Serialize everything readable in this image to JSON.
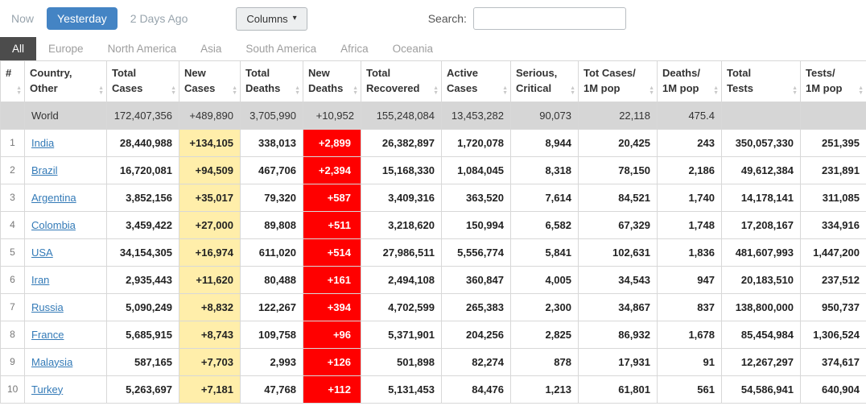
{
  "topbar": {
    "now": "Now",
    "yesterday": "Yesterday",
    "two_days_ago": "2 Days Ago",
    "columns_button": "Columns",
    "caret_icon": "▾",
    "search_label": "Search:",
    "search_value": ""
  },
  "colors": {
    "accent_blue": "#4484c4",
    "active_tab_bg": "#4c4c4c",
    "new_cases_bg": "#FFEEAA",
    "new_deaths_bg": "#FF0000",
    "world_row_bg": "#d6d6d6",
    "link_blue": "#337ab7"
  },
  "tabs": [
    {
      "label": "All",
      "active": true
    },
    {
      "label": "Europe",
      "active": false
    },
    {
      "label": "North America",
      "active": false
    },
    {
      "label": "Asia",
      "active": false
    },
    {
      "label": "South America",
      "active": false
    },
    {
      "label": "Africa",
      "active": false
    },
    {
      "label": "Oceania",
      "active": false
    }
  ],
  "table": {
    "headers": [
      {
        "key": "rank",
        "lines": [
          "#"
        ],
        "sortable": true
      },
      {
        "key": "country",
        "lines": [
          "Country,",
          "Other"
        ],
        "sortable": true
      },
      {
        "key": "total_cases",
        "lines": [
          "Total",
          "Cases"
        ],
        "sortable": true
      },
      {
        "key": "new_cases",
        "lines": [
          "New",
          "Cases"
        ],
        "sortable": true
      },
      {
        "key": "total_deaths",
        "lines": [
          "Total",
          "Deaths"
        ],
        "sortable": true
      },
      {
        "key": "new_deaths",
        "lines": [
          "New",
          "Deaths"
        ],
        "sortable": true
      },
      {
        "key": "total_recovered",
        "lines": [
          "Total",
          "Recovered"
        ],
        "sortable": true
      },
      {
        "key": "active_cases",
        "lines": [
          "Active",
          "Cases"
        ],
        "sortable": true
      },
      {
        "key": "serious_critical",
        "lines": [
          "Serious,",
          "Critical"
        ],
        "sortable": true
      },
      {
        "key": "tot_cases_1m",
        "lines": [
          "Tot Cases/",
          "1M pop"
        ],
        "sortable": true
      },
      {
        "key": "deaths_1m",
        "lines": [
          "Deaths/",
          "1M pop"
        ],
        "sortable": true
      },
      {
        "key": "total_tests",
        "lines": [
          "Total",
          "Tests"
        ],
        "sortable": true
      },
      {
        "key": "tests_1m",
        "lines": [
          "Tests/",
          "1M pop"
        ],
        "sortable": true
      }
    ],
    "world_row": {
      "rank": "",
      "country": "World",
      "total_cases": "172,407,356",
      "new_cases": "+489,890",
      "total_deaths": "3,705,990",
      "new_deaths": "+10,952",
      "total_recovered": "155,248,084",
      "active_cases": "13,453,282",
      "serious_critical": "90,073",
      "tot_cases_1m": "22,118",
      "deaths_1m": "475.4",
      "total_tests": "",
      "tests_1m": ""
    },
    "rows": [
      {
        "rank": "1",
        "country": "India",
        "total_cases": "28,440,988",
        "new_cases": "+134,105",
        "total_deaths": "338,013",
        "new_deaths": "+2,899",
        "total_recovered": "26,382,897",
        "active_cases": "1,720,078",
        "serious_critical": "8,944",
        "tot_cases_1m": "20,425",
        "deaths_1m": "243",
        "total_tests": "350,057,330",
        "tests_1m": "251,395"
      },
      {
        "rank": "2",
        "country": "Brazil",
        "total_cases": "16,720,081",
        "new_cases": "+94,509",
        "total_deaths": "467,706",
        "new_deaths": "+2,394",
        "total_recovered": "15,168,330",
        "active_cases": "1,084,045",
        "serious_critical": "8,318",
        "tot_cases_1m": "78,150",
        "deaths_1m": "2,186",
        "total_tests": "49,612,384",
        "tests_1m": "231,891"
      },
      {
        "rank": "3",
        "country": "Argentina",
        "total_cases": "3,852,156",
        "new_cases": "+35,017",
        "total_deaths": "79,320",
        "new_deaths": "+587",
        "total_recovered": "3,409,316",
        "active_cases": "363,520",
        "serious_critical": "7,614",
        "tot_cases_1m": "84,521",
        "deaths_1m": "1,740",
        "total_tests": "14,178,141",
        "tests_1m": "311,085"
      },
      {
        "rank": "4",
        "country": "Colombia",
        "total_cases": "3,459,422",
        "new_cases": "+27,000",
        "total_deaths": "89,808",
        "new_deaths": "+511",
        "total_recovered": "3,218,620",
        "active_cases": "150,994",
        "serious_critical": "6,582",
        "tot_cases_1m": "67,329",
        "deaths_1m": "1,748",
        "total_tests": "17,208,167",
        "tests_1m": "334,916"
      },
      {
        "rank": "5",
        "country": "USA",
        "total_cases": "34,154,305",
        "new_cases": "+16,974",
        "total_deaths": "611,020",
        "new_deaths": "+514",
        "total_recovered": "27,986,511",
        "active_cases": "5,556,774",
        "serious_critical": "5,841",
        "tot_cases_1m": "102,631",
        "deaths_1m": "1,836",
        "total_tests": "481,607,993",
        "tests_1m": "1,447,200"
      },
      {
        "rank": "6",
        "country": "Iran",
        "total_cases": "2,935,443",
        "new_cases": "+11,620",
        "total_deaths": "80,488",
        "new_deaths": "+161",
        "total_recovered": "2,494,108",
        "active_cases": "360,847",
        "serious_critical": "4,005",
        "tot_cases_1m": "34,543",
        "deaths_1m": "947",
        "total_tests": "20,183,510",
        "tests_1m": "237,512"
      },
      {
        "rank": "7",
        "country": "Russia",
        "total_cases": "5,090,249",
        "new_cases": "+8,832",
        "total_deaths": "122,267",
        "new_deaths": "+394",
        "total_recovered": "4,702,599",
        "active_cases": "265,383",
        "serious_critical": "2,300",
        "tot_cases_1m": "34,867",
        "deaths_1m": "837",
        "total_tests": "138,800,000",
        "tests_1m": "950,737"
      },
      {
        "rank": "8",
        "country": "France",
        "total_cases": "5,685,915",
        "new_cases": "+8,743",
        "total_deaths": "109,758",
        "new_deaths": "+96",
        "total_recovered": "5,371,901",
        "active_cases": "204,256",
        "serious_critical": "2,825",
        "tot_cases_1m": "86,932",
        "deaths_1m": "1,678",
        "total_tests": "85,454,984",
        "tests_1m": "1,306,524"
      },
      {
        "rank": "9",
        "country": "Malaysia",
        "total_cases": "587,165",
        "new_cases": "+7,703",
        "total_deaths": "2,993",
        "new_deaths": "+126",
        "total_recovered": "501,898",
        "active_cases": "82,274",
        "serious_critical": "878",
        "tot_cases_1m": "17,931",
        "deaths_1m": "91",
        "total_tests": "12,267,297",
        "tests_1m": "374,617"
      },
      {
        "rank": "10",
        "country": "Turkey",
        "total_cases": "5,263,697",
        "new_cases": "+7,181",
        "total_deaths": "47,768",
        "new_deaths": "+112",
        "total_recovered": "5,131,453",
        "active_cases": "84,476",
        "serious_critical": "1,213",
        "tot_cases_1m": "61,801",
        "deaths_1m": "561",
        "total_tests": "54,586,941",
        "tests_1m": "640,904"
      }
    ]
  }
}
